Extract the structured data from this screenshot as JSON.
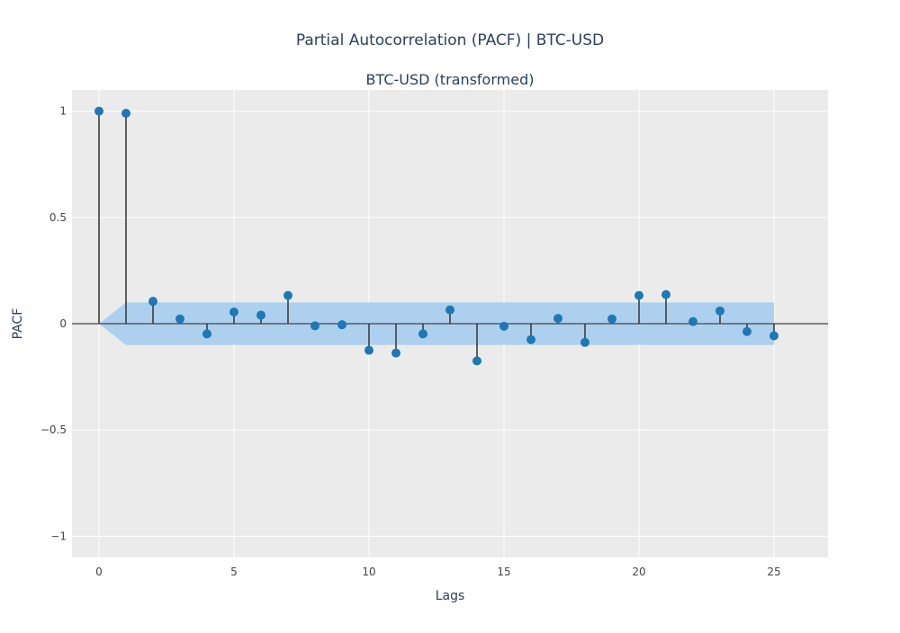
{
  "chart_data": {
    "type": "scatter",
    "title": "Partial Autocorrelation (PACF) | BTC-USD",
    "subtitle": "BTC-USD (transformed)",
    "xlabel": "Lags",
    "ylabel": "PACF",
    "xlim": [
      -1,
      27
    ],
    "ylim": [
      -1.1,
      1.1
    ],
    "x_ticks": [
      0,
      5,
      10,
      15,
      20,
      25
    ],
    "x_tick_labels": [
      "0",
      "5",
      "10",
      "15",
      "20",
      "25"
    ],
    "y_ticks": [
      1,
      0.5,
      0,
      -0.5,
      -1
    ],
    "y_tick_labels": [
      "1",
      "0.5",
      "0",
      "−0.5",
      "−1"
    ],
    "grid": true,
    "legend": "none",
    "colors": {
      "marker": "#1f77b4",
      "stem": "#3b3b3b",
      "confidence_band": "#aacfef",
      "plot_background": "#ebebeb",
      "grid": "#ffffff"
    },
    "lags": [
      0,
      1,
      2,
      3,
      4,
      5,
      6,
      7,
      8,
      9,
      10,
      11,
      12,
      13,
      14,
      15,
      16,
      17,
      18,
      19,
      20,
      21,
      22,
      23,
      24,
      25
    ],
    "values": [
      1.0,
      0.99,
      0.105,
      0.022,
      -0.048,
      0.055,
      0.04,
      0.133,
      -0.01,
      -0.005,
      -0.125,
      -0.138,
      -0.048,
      0.065,
      -0.175,
      -0.012,
      -0.075,
      0.025,
      -0.088,
      0.022,
      0.133,
      0.137,
      0.01,
      0.06,
      -0.037,
      -0.057
    ],
    "confidence_upper": [
      0,
      0.1,
      0.1,
      0.1,
      0.1,
      0.1,
      0.1,
      0.1,
      0.1,
      0.1,
      0.1,
      0.1,
      0.1,
      0.1,
      0.1,
      0.1,
      0.1,
      0.1,
      0.1,
      0.1,
      0.1,
      0.1,
      0.1,
      0.1,
      0.1,
      0.1
    ],
    "confidence_lower": [
      0,
      -0.1,
      -0.1,
      -0.1,
      -0.1,
      -0.1,
      -0.1,
      -0.1,
      -0.1,
      -0.1,
      -0.1,
      -0.1,
      -0.1,
      -0.1,
      -0.1,
      -0.1,
      -0.1,
      -0.1,
      -0.1,
      -0.1,
      -0.1,
      -0.1,
      -0.1,
      -0.1,
      -0.1,
      -0.1
    ]
  }
}
